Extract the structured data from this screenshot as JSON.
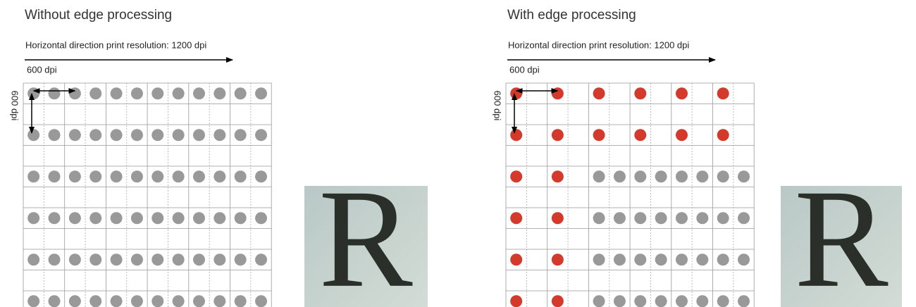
{
  "panels": [
    {
      "title": "Without edge processing",
      "horizontal_label": "Horizontal direction print resolution: 1200 dpi",
      "pitch_label": "600 dpi",
      "vertical_label": "600 dpi",
      "sample_letter": "R"
    },
    {
      "title": "With edge processing",
      "horizontal_label": "Horizontal direction print resolution: 1200 dpi",
      "pitch_label": "600 dpi",
      "vertical_label": "600 dpi",
      "sample_letter": "R"
    }
  ]
}
